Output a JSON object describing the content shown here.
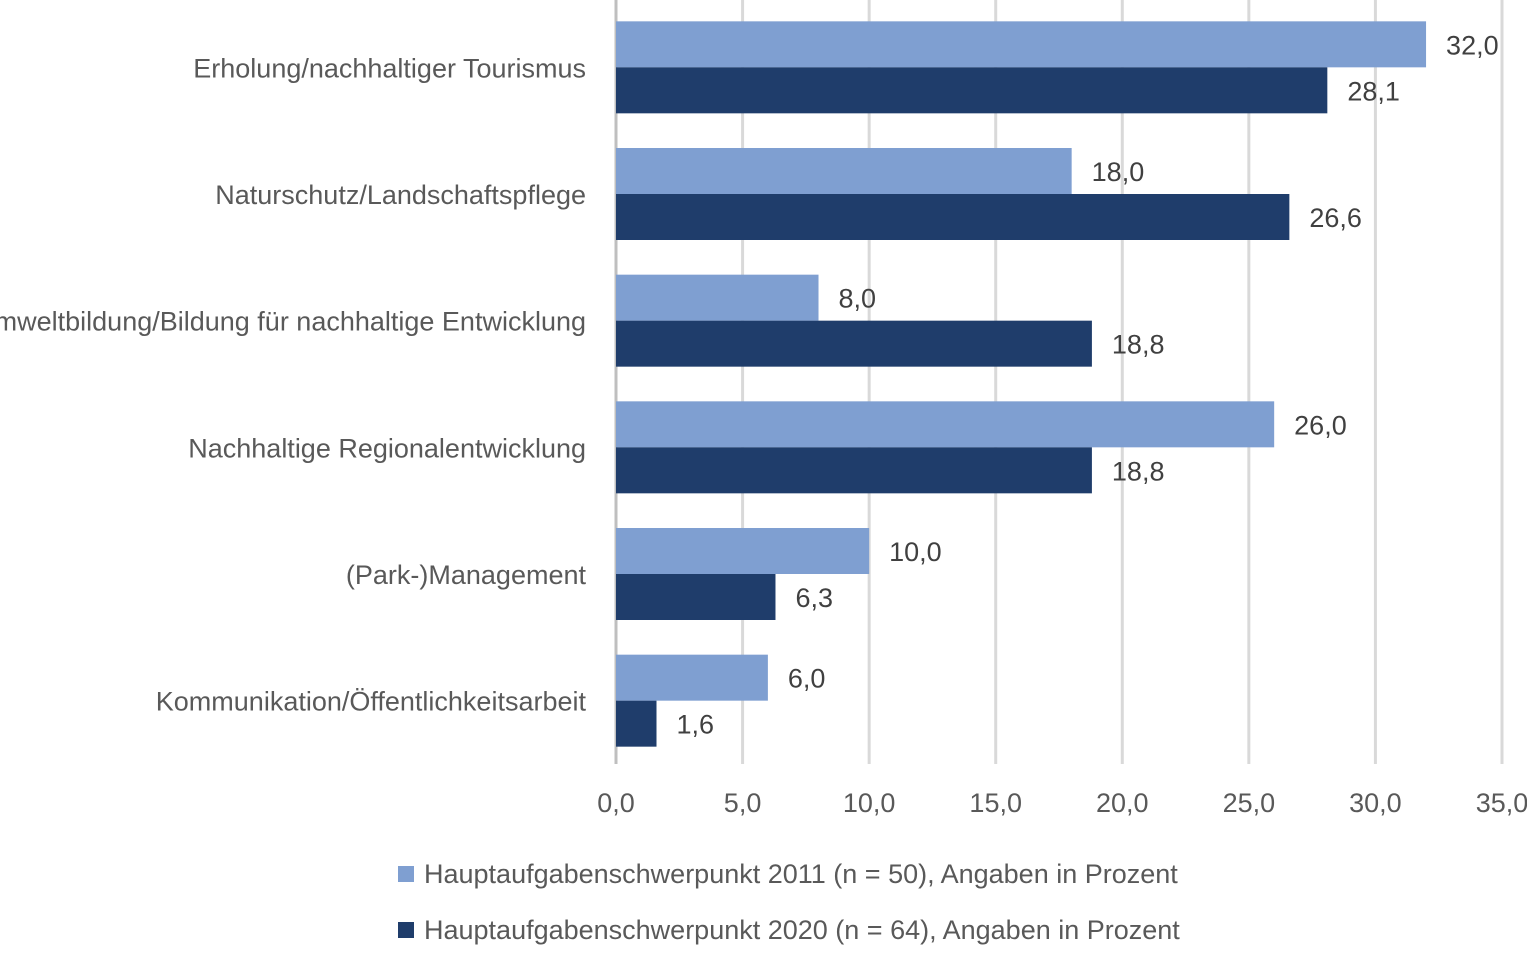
{
  "chart_data": {
    "type": "bar",
    "orientation": "horizontal",
    "categories": [
      "Erholung/nachhaltiger Tourismus",
      "Naturschutz/Landschaftspflege",
      "Umweltbildung/Bildung für nachhaltige Entwicklung",
      "Nachhaltige Regionalentwicklung",
      "(Park-)Management",
      "Kommunikation/Öffentlichkeitsarbeit"
    ],
    "series": [
      {
        "name": "Hauptaufgabenschwerpunkt 2011 (n = 50), Angaben in Prozent",
        "color": "#7f9fd1",
        "values": [
          32.0,
          18.0,
          8.0,
          26.0,
          10.0,
          6.0
        ],
        "labels": [
          "32,0",
          "18,0",
          "8,0",
          "26,0",
          "10,0",
          "6,0"
        ]
      },
      {
        "name": "Hauptaufgabenschwerpunkt 2020 (n = 64), Angaben in Prozent",
        "color": "#1f3d6b",
        "values": [
          28.1,
          26.6,
          18.8,
          18.8,
          6.3,
          1.6
        ],
        "labels": [
          "28,1",
          "26,6",
          "18,8",
          "18,8",
          "6,3",
          "1,6"
        ]
      }
    ],
    "xlim": [
      0,
      35
    ],
    "xticks": [
      0,
      5,
      10,
      15,
      20,
      25,
      30,
      35
    ],
    "xtick_labels": [
      "0,0",
      "5,0",
      "10,0",
      "15,0",
      "20,0",
      "25,0",
      "30,0",
      "35,0"
    ],
    "grid": true,
    "legend_position": "bottom"
  }
}
